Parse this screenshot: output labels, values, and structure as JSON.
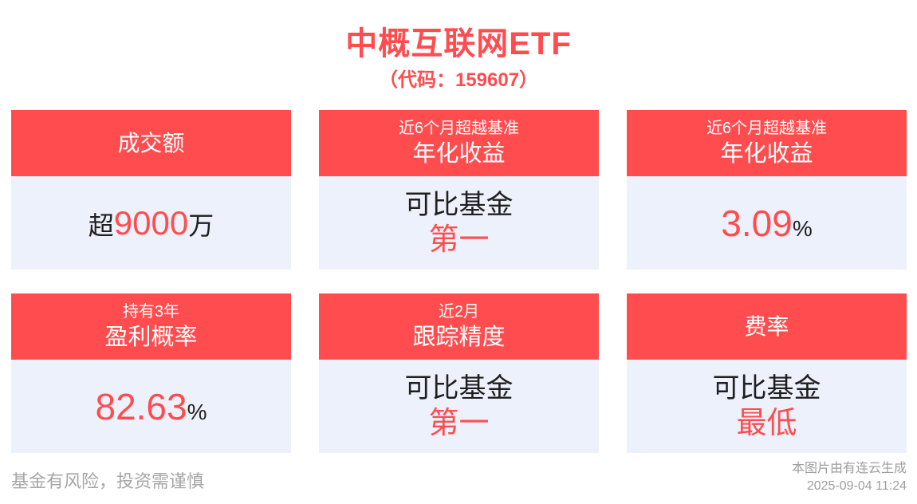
{
  "page": {
    "title": "中概互联网ETF",
    "subtitle": "（代码：159607）"
  },
  "colors": {
    "accent_red": "#FF4D4F",
    "card_body_bg": "#EDF1FB",
    "dark_text": "#1F1F1F",
    "muted_text": "#A6A6A6"
  },
  "cards": [
    {
      "header": {
        "line2": "成交额"
      },
      "body": {
        "prefix": "超",
        "value": "9000",
        "suffix": "万"
      }
    },
    {
      "header": {
        "line1": "近6个月超越基准",
        "line2": "年化收益"
      },
      "body": {
        "line1": "可比基金",
        "line2": "第一"
      }
    },
    {
      "header": {
        "line1": "近6个月超越基准",
        "line2": "年化收益"
      },
      "body": {
        "value": "3.09",
        "unit": "%"
      }
    },
    {
      "header": {
        "line1": "持有3年",
        "line2": "盈利概率"
      },
      "body": {
        "value": "82.63",
        "unit": "%"
      }
    },
    {
      "header": {
        "line1": "近2月",
        "line2": "跟踪精度"
      },
      "body": {
        "line1": "可比基金",
        "line2": "第一"
      }
    },
    {
      "header": {
        "line2": "费率"
      },
      "body": {
        "line1": "可比基金",
        "line2": "最低"
      }
    }
  ],
  "footer": {
    "disclaimer": "基金有风险，投资需谨慎",
    "credit": "本图片由有连云生成",
    "timestamp": "2025-09-04 11:24"
  }
}
